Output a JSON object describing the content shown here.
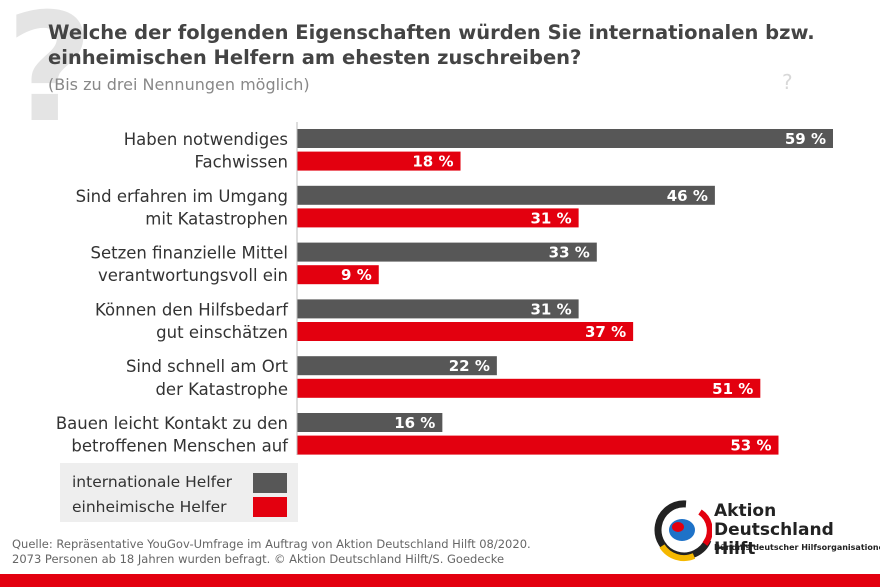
{
  "header": {
    "title": "Welche der folgenden Eigenschaften würden Sie internationalen bzw. einheimischen Helfern am ehesten zuschreiben?",
    "subtitle": "(Bis zu drei Nennungen möglich)",
    "question_mark": "?"
  },
  "chart_data": {
    "type": "bar",
    "orientation": "horizontal",
    "categories": [
      [
        "Haben notwendiges",
        "Fachwissen"
      ],
      [
        "Sind erfahren im Umgang",
        "mit Katastrophen"
      ],
      [
        "Setzen finanzielle Mittel",
        "verantwortungsvoll ein"
      ],
      [
        "Können den Hilfsbedarf",
        "gut einschätzen"
      ],
      [
        "Sind schnell am Ort",
        "der Katastrophe"
      ],
      [
        "Bauen leicht Kontakt zu den",
        "betroffenen Menschen auf"
      ]
    ],
    "series": [
      {
        "name": "internationale Helfer",
        "color": "#575757",
        "values": [
          59,
          46,
          33,
          31,
          22,
          16
        ]
      },
      {
        "name": "einheimische Helfer",
        "color": "#e3000f",
        "values": [
          18,
          31,
          9,
          37,
          51,
          53
        ]
      }
    ],
    "value_suffix": " %",
    "xlim": [
      0,
      60
    ],
    "legend_position": "bottom-left",
    "title": "Welche der folgenden Eigenschaften würden Sie internationalen bzw. einheimischen Helfern am ehesten zuschreiben?"
  },
  "legend": {
    "items": [
      {
        "label": "internationale Helfer",
        "color": "#575757"
      },
      {
        "label": "einheimische Helfer",
        "color": "#e3000f"
      }
    ]
  },
  "source": {
    "line1": "Quelle: Repräsentative YouGov-Umfrage im Auftrag von Aktion Deutschland Hilft 08/2020.",
    "line2": "2073 Personen ab 18 Jahren wurden befragt. © Aktion Deutschland Hilft/S. Goedecke"
  },
  "logo": {
    "line1": "Aktion",
    "line2": "Deutschland Hilft",
    "tagline": "Bündnis deutscher Hilfsorganisationen"
  },
  "colors": {
    "accent_red": "#e3000f",
    "dark_gray": "#575757",
    "legend_bg": "#eeeeee"
  }
}
